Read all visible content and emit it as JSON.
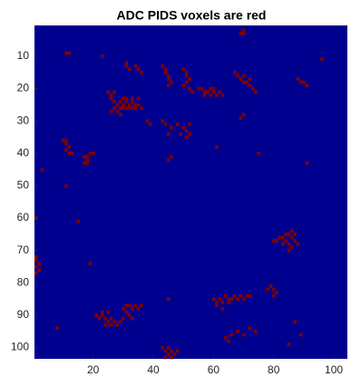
{
  "chart_data": {
    "type": "image",
    "title": "ADC PIDS voxels are red",
    "background_color": "#00008f",
    "voxel_color": "#800000",
    "xlim": [
      0.5,
      104.5
    ],
    "ylim": [
      0.5,
      103.5
    ],
    "y_reversed": true,
    "xticks": [
      20,
      40,
      60,
      80,
      100
    ],
    "yticks": [
      10,
      20,
      30,
      40,
      50,
      60,
      70,
      80,
      90,
      100
    ],
    "voxels": [
      [
        70,
        2
      ],
      [
        70,
        3
      ],
      [
        69,
        3
      ],
      [
        11,
        9
      ],
      [
        12,
        9
      ],
      [
        23,
        10
      ],
      [
        31,
        12
      ],
      [
        31,
        13
      ],
      [
        32,
        14
      ],
      [
        35,
        14
      ],
      [
        36,
        15
      ],
      [
        34,
        13
      ],
      [
        43,
        13
      ],
      [
        44,
        14
      ],
      [
        44,
        15
      ],
      [
        45,
        16
      ],
      [
        45,
        17
      ],
      [
        46,
        18
      ],
      [
        45,
        19
      ],
      [
        50,
        14
      ],
      [
        51,
        15
      ],
      [
        51,
        16
      ],
      [
        52,
        17
      ],
      [
        51,
        18
      ],
      [
        50,
        19
      ],
      [
        52,
        20
      ],
      [
        53,
        21
      ],
      [
        55,
        20
      ],
      [
        56,
        20
      ],
      [
        57,
        21
      ],
      [
        58,
        21
      ],
      [
        59,
        20
      ],
      [
        60,
        21
      ],
      [
        61,
        22
      ],
      [
        62,
        21
      ],
      [
        63,
        22
      ],
      [
        57,
        22
      ],
      [
        59,
        22
      ],
      [
        60,
        20
      ],
      [
        67,
        15
      ],
      [
        68,
        16
      ],
      [
        69,
        17
      ],
      [
        70,
        16
      ],
      [
        71,
        18
      ],
      [
        72,
        19
      ],
      [
        73,
        20
      ],
      [
        74,
        21
      ],
      [
        70,
        18
      ],
      [
        72,
        17
      ],
      [
        88,
        17
      ],
      [
        89,
        18
      ],
      [
        90,
        18
      ],
      [
        91,
        19
      ],
      [
        96,
        11
      ],
      [
        25,
        21
      ],
      [
        26,
        22
      ],
      [
        27,
        21
      ],
      [
        26,
        23
      ],
      [
        27,
        24
      ],
      [
        28,
        25
      ],
      [
        29,
        24
      ],
      [
        30,
        25
      ],
      [
        31,
        24
      ],
      [
        32,
        25
      ],
      [
        33,
        24
      ],
      [
        34,
        25
      ],
      [
        30,
        26
      ],
      [
        31,
        26
      ],
      [
        32,
        26
      ],
      [
        33,
        26
      ],
      [
        28,
        27
      ],
      [
        29,
        26
      ],
      [
        27,
        26
      ],
      [
        26,
        27
      ],
      [
        31,
        23
      ],
      [
        30,
        23
      ],
      [
        35,
        25
      ],
      [
        36,
        26
      ],
      [
        34,
        26
      ],
      [
        33,
        23
      ],
      [
        35,
        23
      ],
      [
        29,
        28
      ],
      [
        38,
        30
      ],
      [
        39,
        31
      ],
      [
        43,
        30
      ],
      [
        44,
        31
      ],
      [
        46,
        32
      ],
      [
        48,
        31
      ],
      [
        50,
        32
      ],
      [
        51,
        33
      ],
      [
        52,
        31
      ],
      [
        49,
        34
      ],
      [
        51,
        35
      ],
      [
        52,
        34
      ],
      [
        45,
        34
      ],
      [
        69,
        29
      ],
      [
        70,
        28
      ],
      [
        10,
        36
      ],
      [
        11,
        36
      ],
      [
        11,
        37
      ],
      [
        12,
        38
      ],
      [
        11,
        39
      ],
      [
        13,
        40
      ],
      [
        12,
        40
      ],
      [
        17,
        41
      ],
      [
        18,
        41
      ],
      [
        18,
        42
      ],
      [
        19,
        40
      ],
      [
        20,
        40
      ],
      [
        17,
        43
      ],
      [
        18,
        43
      ],
      [
        45,
        42
      ],
      [
        46,
        41
      ],
      [
        61,
        38
      ],
      [
        75,
        40
      ],
      [
        91,
        43
      ],
      [
        3,
        45
      ],
      [
        11,
        50
      ],
      [
        1,
        60
      ],
      [
        15,
        61
      ],
      [
        81,
        67
      ],
      [
        82,
        66
      ],
      [
        83,
        66
      ],
      [
        84,
        65
      ],
      [
        85,
        65
      ],
      [
        86,
        66
      ],
      [
        87,
        67
      ],
      [
        88,
        68
      ],
      [
        86,
        69
      ],
      [
        84,
        67
      ],
      [
        85,
        68
      ],
      [
        86,
        64
      ],
      [
        87,
        65
      ],
      [
        85,
        70
      ],
      [
        83,
        68
      ],
      [
        80,
        67
      ],
      [
        1,
        72
      ],
      [
        1,
        73
      ],
      [
        2,
        74
      ],
      [
        1,
        75
      ],
      [
        2,
        76
      ],
      [
        1,
        77
      ],
      [
        19,
        74
      ],
      [
        79,
        81
      ],
      [
        80,
        82
      ],
      [
        81,
        83
      ],
      [
        80,
        84
      ],
      [
        78,
        82
      ],
      [
        60,
        85
      ],
      [
        61,
        86
      ],
      [
        62,
        85
      ],
      [
        63,
        86
      ],
      [
        64,
        84
      ],
      [
        65,
        86
      ],
      [
        66,
        85
      ],
      [
        67,
        84
      ],
      [
        68,
        85
      ],
      [
        69,
        84
      ],
      [
        70,
        85
      ],
      [
        71,
        84
      ],
      [
        72,
        84
      ],
      [
        61,
        87
      ],
      [
        63,
        88
      ],
      [
        65,
        85
      ],
      [
        31,
        87
      ],
      [
        32,
        87
      ],
      [
        33,
        88
      ],
      [
        34,
        87
      ],
      [
        35,
        88
      ],
      [
        36,
        87
      ],
      [
        31,
        89
      ],
      [
        32,
        90
      ],
      [
        33,
        91
      ],
      [
        30,
        88
      ],
      [
        21,
        90
      ],
      [
        22,
        91
      ],
      [
        23,
        90
      ],
      [
        24,
        91
      ],
      [
        25,
        92
      ],
      [
        26,
        91
      ],
      [
        27,
        92
      ],
      [
        28,
        93
      ],
      [
        29,
        92
      ],
      [
        30,
        91
      ],
      [
        24,
        93
      ],
      [
        26,
        93
      ],
      [
        23,
        89
      ],
      [
        25,
        89
      ],
      [
        8,
        94
      ],
      [
        45,
        85
      ],
      [
        87,
        92
      ],
      [
        64,
        97
      ],
      [
        66,
        96
      ],
      [
        68,
        95
      ],
      [
        70,
        96
      ],
      [
        72,
        94
      ],
      [
        74,
        95
      ],
      [
        65,
        98
      ],
      [
        43,
        100
      ],
      [
        44,
        101
      ],
      [
        45,
        100
      ],
      [
        46,
        101
      ],
      [
        47,
        102
      ],
      [
        48,
        101
      ],
      [
        45,
        102
      ],
      [
        46,
        103
      ],
      [
        44,
        103
      ],
      [
        85,
        99
      ],
      [
        89,
        96
      ]
    ]
  }
}
